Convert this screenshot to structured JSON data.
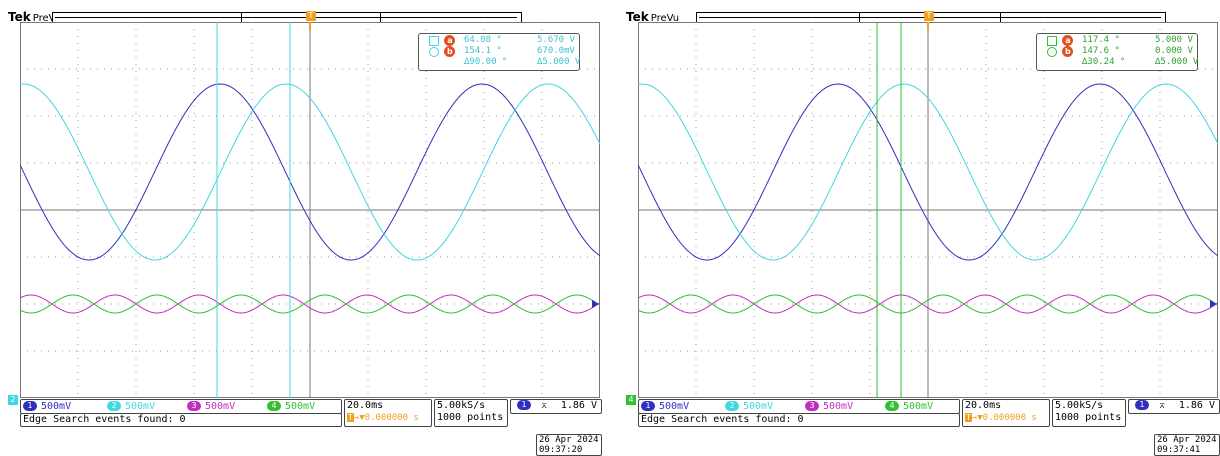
{
  "colors": {
    "ch1": "#3030c0",
    "ch2": "#40d8e0",
    "ch3": "#c030c0",
    "ch4": "#30c030",
    "cursor_marker": "#e05020",
    "trigger": "#f0a020",
    "grid": "#999999"
  },
  "screens": [
    {
      "brand": "Tek",
      "mode": "PreVu",
      "cursor_a_label": "a",
      "cursor_b_label": "b",
      "trigger_label": "T",
      "readout": {
        "a_time": "64.08 °",
        "a_value": "5.670 V",
        "b_time": "154.1 °",
        "b_value": "670.0mV",
        "delta_time": "∆90.00 °",
        "delta_value": "∆5.000 V"
      },
      "channels": [
        {
          "num": "1",
          "scale": "500mV"
        },
        {
          "num": "2",
          "scale": "500mV"
        },
        {
          "num": "3",
          "scale": "500mV"
        },
        {
          "num": "4",
          "scale": "500mV"
        }
      ],
      "timebase": "20.0ms",
      "trigger_pos": "→▼0.000000 s",
      "trigger_pos_tag": "T",
      "sample_rate": "5.00kS/s",
      "record_length": "1000 points",
      "trig_source": "1",
      "trig_symbol": "⌅",
      "trig_level": "1.86 V",
      "search": "Edge Search events found: 0",
      "date": "26 Apr 2024",
      "time": "09:37:20",
      "gnd_label": "2"
    },
    {
      "brand": "Tek",
      "mode": "PreVu",
      "cursor_a_label": "a",
      "cursor_b_label": "b",
      "trigger_label": "T",
      "readout": {
        "a_time": "117.4 °",
        "a_value": "5.000 V",
        "b_time": "147.6 °",
        "b_value": "0.000 V",
        "delta_time": "∆30.24 °",
        "delta_value": "∆5.000 V"
      },
      "channels": [
        {
          "num": "1",
          "scale": "500mV"
        },
        {
          "num": "2",
          "scale": "500mV"
        },
        {
          "num": "3",
          "scale": "500mV"
        },
        {
          "num": "4",
          "scale": "500mV"
        }
      ],
      "timebase": "20.0ms",
      "trigger_pos": "→▼0.000000 s",
      "trigger_pos_tag": "T",
      "sample_rate": "5.00kS/s",
      "record_length": "1000 points",
      "trig_source": "1",
      "trig_symbol": "⌅",
      "trig_level": "1.86 V",
      "search": "Edge Search events found: 0",
      "date": "26 Apr 2024",
      "time": "09:37:41",
      "gnd_label": "4"
    }
  ]
}
